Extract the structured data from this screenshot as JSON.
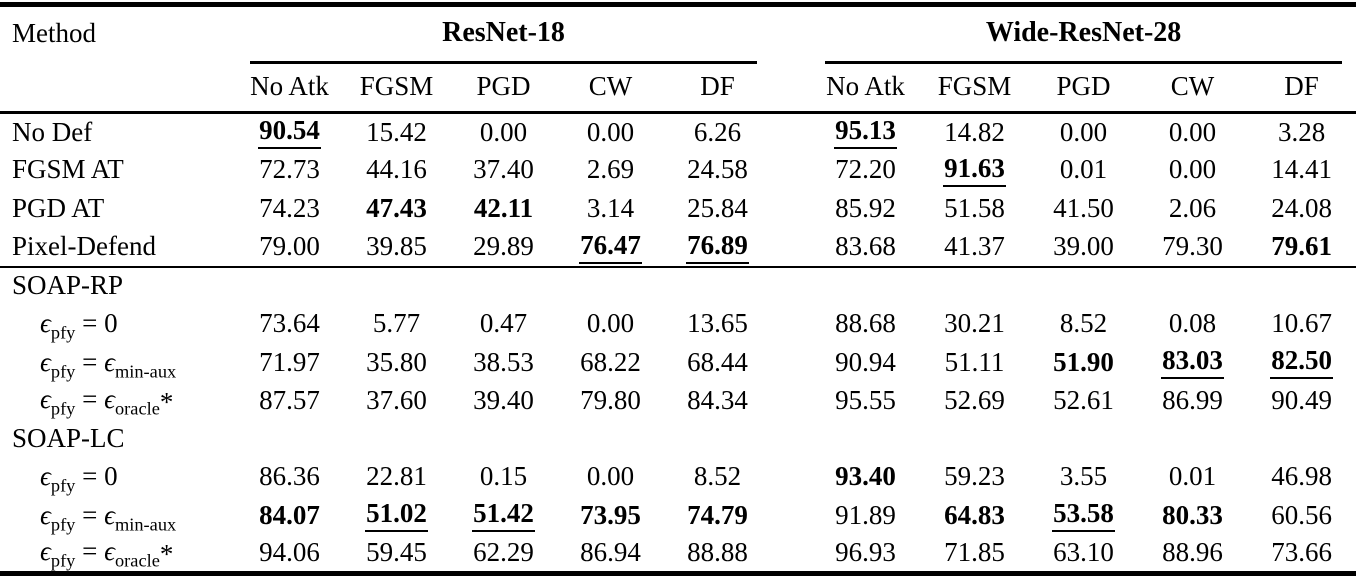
{
  "table": {
    "method_header": "Method",
    "groups": [
      {
        "label": "ResNet-18",
        "columns": [
          "No Atk",
          "FGSM",
          "PGD",
          "CW",
          "DF"
        ]
      },
      {
        "label": "Wide-ResNet-28",
        "columns": [
          "No Atk",
          "FGSM",
          "PGD",
          "CW",
          "DF"
        ]
      }
    ],
    "rows": [
      {
        "type": "data",
        "label": "No Def",
        "indent": false,
        "cells": [
          {
            "v": "90.54",
            "bold": true,
            "underline": true
          },
          "15.42",
          "0.00",
          "0.00",
          "6.26",
          {
            "v": "95.13",
            "bold": true,
            "underline": true
          },
          "14.82",
          "0.00",
          "0.00",
          "3.28"
        ]
      },
      {
        "type": "data",
        "label": "FGSM AT",
        "indent": false,
        "cells": [
          "72.73",
          "44.16",
          "37.40",
          "2.69",
          "24.58",
          "72.20",
          {
            "v": "91.63",
            "bold": true,
            "underline": true
          },
          "0.01",
          "0.00",
          "14.41"
        ]
      },
      {
        "type": "data",
        "label": "PGD AT",
        "indent": false,
        "cells": [
          "74.23",
          {
            "v": "47.43",
            "bold": true
          },
          {
            "v": "42.11",
            "bold": true
          },
          "3.14",
          "25.84",
          "85.92",
          "51.58",
          "41.50",
          "2.06",
          "24.08"
        ]
      },
      {
        "type": "data",
        "label": "Pixel-Defend",
        "indent": false,
        "cells": [
          "79.00",
          "39.85",
          "29.89",
          {
            "v": "76.47",
            "bold": true,
            "underline": true
          },
          {
            "v": "76.89",
            "bold": true,
            "underline": true
          },
          "83.68",
          "41.37",
          "39.00",
          "79.30",
          {
            "v": "79.61",
            "bold": true
          }
        ]
      },
      {
        "type": "section",
        "label": "SOAP-RP",
        "ruled": true
      },
      {
        "type": "data",
        "label": "ϵ_{pfy} = 0",
        "indent": true,
        "cells": [
          "73.64",
          "5.77",
          "0.47",
          "0.00",
          "13.65",
          "88.68",
          "30.21",
          "8.52",
          "0.08",
          "10.67"
        ]
      },
      {
        "type": "data",
        "label": "ϵ_{pfy} = ϵ_{min-aux}",
        "indent": true,
        "cells": [
          "71.97",
          "35.80",
          "38.53",
          "68.22",
          "68.44",
          "90.94",
          "51.11",
          {
            "v": "51.90",
            "bold": true
          },
          {
            "v": "83.03",
            "bold": true,
            "underline": true
          },
          {
            "v": "82.50",
            "bold": true,
            "underline": true
          }
        ]
      },
      {
        "type": "data",
        "label": "ϵ_{pfy} = ϵ_{oracle}*",
        "indent": true,
        "cells": [
          "87.57",
          "37.60",
          "39.40",
          "79.80",
          "84.34",
          "95.55",
          "52.69",
          "52.61",
          "86.99",
          "90.49"
        ]
      },
      {
        "type": "section",
        "label": "SOAP-LC",
        "ruled": false
      },
      {
        "type": "data",
        "label": "ϵ_{pfy} = 0",
        "indent": true,
        "cells": [
          "86.36",
          "22.81",
          "0.15",
          "0.00",
          "8.52",
          {
            "v": "93.40",
            "bold": true
          },
          "59.23",
          "3.55",
          "0.01",
          "46.98"
        ]
      },
      {
        "type": "data",
        "label": "ϵ_{pfy} = ϵ_{min-aux}",
        "indent": true,
        "cells": [
          {
            "v": "84.07",
            "bold": true
          },
          {
            "v": "51.02",
            "bold": true,
            "underline": true
          },
          {
            "v": "51.42",
            "bold": true,
            "underline": true
          },
          {
            "v": "73.95",
            "bold": true
          },
          {
            "v": "74.79",
            "bold": true
          },
          "91.89",
          {
            "v": "64.83",
            "bold": true
          },
          {
            "v": "53.58",
            "bold": true,
            "underline": true
          },
          {
            "v": "80.33",
            "bold": true
          },
          "60.56"
        ]
      },
      {
        "type": "data",
        "label": "ϵ_{pfy} = ϵ_{oracle}*",
        "indent": true,
        "cells": [
          "94.06",
          "59.45",
          "62.29",
          "86.94",
          "88.88",
          "96.93",
          "71.85",
          "63.10",
          "88.96",
          "73.66"
        ]
      }
    ]
  }
}
